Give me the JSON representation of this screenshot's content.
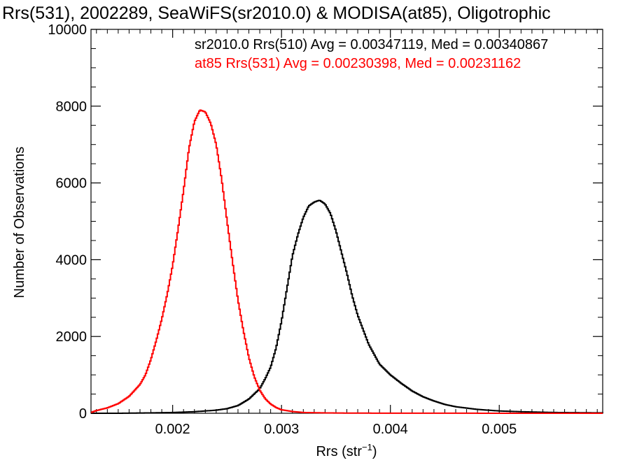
{
  "chart_data": {
    "type": "line",
    "title": "Rrs(531), 2002289, SeaWiFS(sr2010.0) & MODISA(at85), Oligotrophic",
    "xlabel_main": "Rrs (str",
    "xlabel_sup": "−1",
    "xlabel_close": ")",
    "ylabel": "Number of Observations",
    "xlim": [
      0.00125,
      0.00595
    ],
    "ylim": [
      0,
      10000
    ],
    "xticks": [
      0.002,
      0.003,
      0.004,
      0.005
    ],
    "xtick_labels": [
      "0.002",
      "0.003",
      "0.004",
      "0.005"
    ],
    "yticks": [
      0,
      2000,
      4000,
      6000,
      8000,
      10000
    ],
    "ytick_labels": [
      "0",
      "2000",
      "4000",
      "6000",
      "8000",
      "10000"
    ],
    "grid": false,
    "legend_position": "top-right",
    "series": [
      {
        "legend_text": "sr2010.0 Rrs(510) Avg = 0.00347119, Med = 0.00340867",
        "color": "#000000",
        "x": [
          0.00125,
          0.0015,
          0.0018,
          0.002,
          0.0022,
          0.0024,
          0.0025,
          0.0026,
          0.0027,
          0.0028,
          0.00285,
          0.0029,
          0.00295,
          0.003,
          0.00305,
          0.0031,
          0.00315,
          0.0032,
          0.00325,
          0.0033,
          0.00335,
          0.0034,
          0.00345,
          0.0035,
          0.00355,
          0.0036,
          0.00365,
          0.0037,
          0.0038,
          0.0039,
          0.004,
          0.0041,
          0.0042,
          0.0043,
          0.0044,
          0.0045,
          0.0046,
          0.0048,
          0.005,
          0.0052,
          0.0055,
          0.00595
        ],
        "y": [
          0,
          0,
          10,
          20,
          40,
          80,
          120,
          200,
          370,
          640,
          900,
          1200,
          1700,
          2400,
          3250,
          4100,
          4650,
          5100,
          5400,
          5500,
          5550,
          5450,
          5200,
          4750,
          4200,
          3650,
          3050,
          2550,
          1800,
          1280,
          1000,
          780,
          580,
          430,
          320,
          230,
          170,
          100,
          60,
          40,
          20,
          10
        ]
      },
      {
        "legend_text": "at85 Rrs(531) Avg = 0.00230398, Med = 0.00231162",
        "color": "#ff0000",
        "x": [
          0.00125,
          0.0013,
          0.0014,
          0.0015,
          0.0016,
          0.0017,
          0.00175,
          0.0018,
          0.00185,
          0.0019,
          0.00195,
          0.002,
          0.00205,
          0.0021,
          0.00215,
          0.0022,
          0.00225,
          0.0023,
          0.00235,
          0.0024,
          0.00245,
          0.0025,
          0.00255,
          0.0026,
          0.00265,
          0.0027,
          0.00275,
          0.0028,
          0.00285,
          0.0029,
          0.00295,
          0.003,
          0.0031,
          0.0032,
          0.0034,
          0.0036,
          0.004,
          0.00595
        ],
        "y": [
          20,
          70,
          140,
          250,
          440,
          750,
          1000,
          1400,
          1900,
          2450,
          3100,
          3850,
          4800,
          5800,
          6900,
          7600,
          7900,
          7850,
          7550,
          7000,
          6100,
          5000,
          3950,
          2950,
          2150,
          1450,
          950,
          600,
          380,
          240,
          150,
          90,
          45,
          20,
          10,
          5,
          2,
          0
        ]
      }
    ]
  }
}
